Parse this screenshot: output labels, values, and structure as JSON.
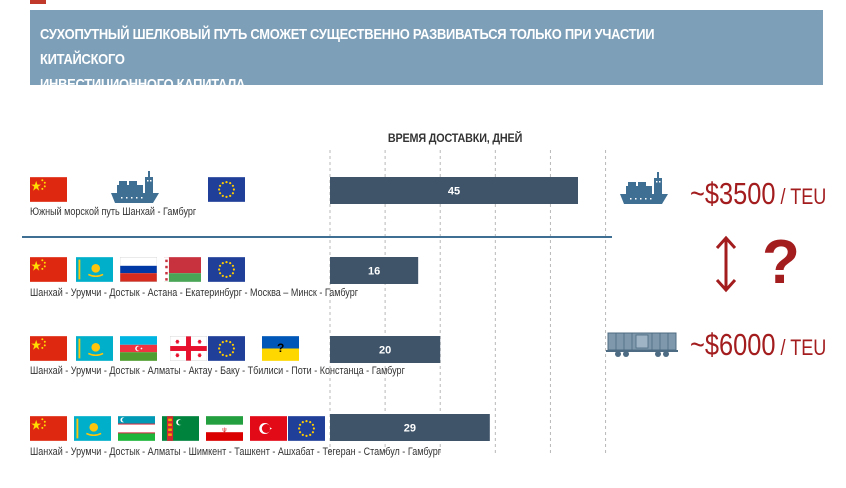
{
  "banner": {
    "line1": "СУХОПУТНЫЙ ШЕЛКОВЫЙ ПУТЬ СМОЖЕТ СУЩЕСТВЕННО РАЗВИВАТЬСЯ ТОЛЬКО ПРИ УЧАСТИИ КИТАЙСКОГО",
    "line2": "ИНВЕСТИЦИОННОГО КАПИТАЛА"
  },
  "chart_data": {
    "type": "bar",
    "orientation": "horizontal",
    "title": "ВРЕМЯ ДОСТАВКИ, ДНЕЙ",
    "xlim": [
      0,
      50
    ],
    "grid": true,
    "bar_color": "#3f5469",
    "categories": [
      "Южный морской путь Шанхай - Гамбург",
      "Шанхай - Урумчи - Достык - Астана - Екатеринбург - Москва – Минск - Гамбург",
      "Шанхай - Урумчи - Достык - Алматы - Актау - Баку - Тбилиси - Поти - Констанца - Гамбург",
      "Шанхай - Урумчи - Достык - Алматы - Шимкент - Ташкент - Ашхабат - Тегеран - Стамбул - Гамбург"
    ],
    "values": [
      45,
      16,
      20,
      29
    ],
    "data_labels": [
      "45",
      "16",
      "20",
      "29"
    ]
  },
  "routes": [
    {
      "flags": [
        "china-flag",
        "ship-icon",
        "eu-flag"
      ]
    },
    {
      "flags": [
        "china-flag",
        "kazakhstan-flag",
        "russia-flag",
        "belarus-flag",
        "eu-flag"
      ]
    },
    {
      "flags": [
        "china-flag",
        "kazakhstan-flag",
        "azerbaijan-flag",
        "georgia-flag",
        "eu-flag",
        "ukraine-flag"
      ]
    },
    {
      "flags": [
        "china-flag",
        "kazakhstan-flag",
        "uzbekistan-flag",
        "turkmenistan-flag",
        "iran-flag",
        "turkey-flag",
        "eu-flag"
      ]
    }
  ],
  "costs": {
    "sea": {
      "amount": "~$3500",
      "unit": " / TEU"
    },
    "rail": {
      "amount": "~$6000",
      "unit": " / TEU"
    },
    "question": "?"
  },
  "ukraine_mark": "?",
  "colors": {
    "accent": "#a31d1f",
    "banner": "#7d9fb8",
    "bar": "#3f5469",
    "separator": "#3f6f93"
  }
}
